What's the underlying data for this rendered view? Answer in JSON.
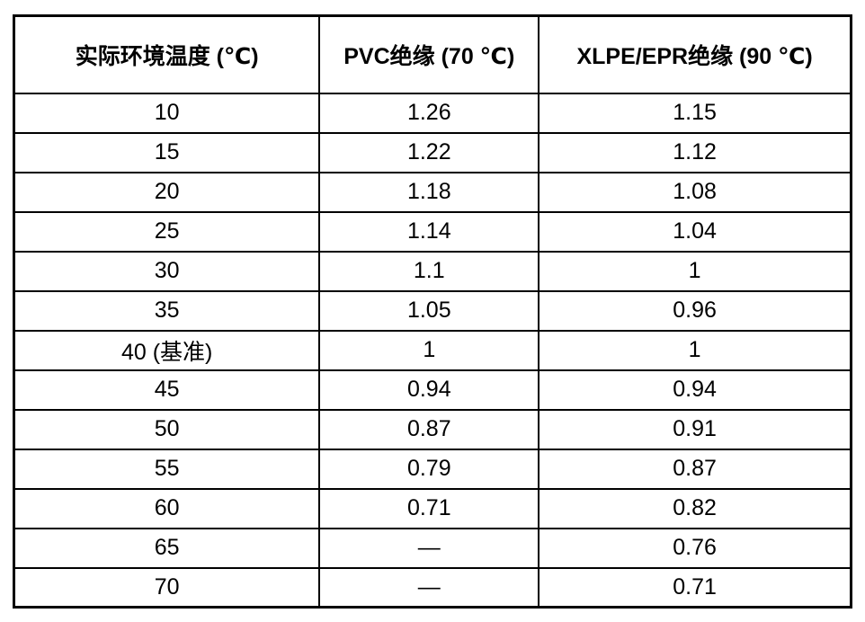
{
  "table": {
    "name": "ambient-temperature-correction-factors",
    "columns": [
      {
        "label": "实际环境温度 (℃)"
      },
      {
        "label": "PVC绝缘 (70 ℃)"
      },
      {
        "label": "XLPE/EPR绝缘 (90 ℃)"
      }
    ],
    "rows": [
      [
        "10",
        "1.26",
        "1.15"
      ],
      [
        "15",
        "1.22",
        "1.12"
      ],
      [
        "20",
        "1.18",
        "1.08"
      ],
      [
        "25",
        "1.14",
        "1.04"
      ],
      [
        "30",
        "1.1",
        "1"
      ],
      [
        "35",
        "1.05",
        "0.96"
      ],
      [
        "40 (基准)",
        "1",
        "1"
      ],
      [
        "45",
        "0.94",
        "0.94"
      ],
      [
        "50",
        "0.87",
        "0.91"
      ],
      [
        "55",
        "0.79",
        "0.87"
      ],
      [
        "60",
        "0.71",
        "0.82"
      ],
      [
        "65",
        "—",
        "0.76"
      ],
      [
        "70",
        "—",
        "0.71"
      ]
    ],
    "colors": {
      "border": "#000000",
      "text": "#000000",
      "background": "#ffffff"
    }
  }
}
